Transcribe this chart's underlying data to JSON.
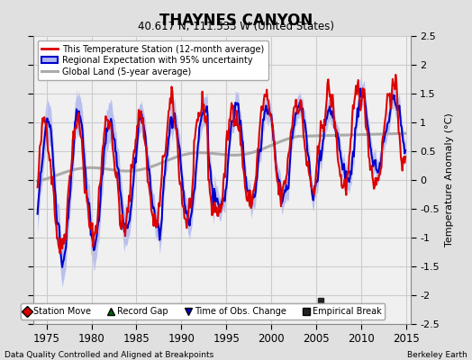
{
  "title": "THAYNES CANYON",
  "subtitle": "40.617 N, 111.533 W (United States)",
  "ylabel": "Temperature Anomaly (°C)",
  "xlabel_left": "Data Quality Controlled and Aligned at Breakpoints",
  "xlabel_right": "Berkeley Earth",
  "ylim": [
    -2.5,
    2.5
  ],
  "xlim": [
    1973.5,
    2015.5
  ],
  "xticks": [
    1975,
    1980,
    1985,
    1990,
    1995,
    2000,
    2005,
    2010,
    2015
  ],
  "yticks": [
    -2.5,
    -2,
    -1.5,
    -1,
    -0.5,
    0,
    0.5,
    1,
    1.5,
    2,
    2.5
  ],
  "bg_color": "#e0e0e0",
  "plot_bg_color": "#f0f0f0",
  "grid_color": "#cccccc",
  "station_color": "#dd0000",
  "regional_color": "#0000cc",
  "regional_fill_color": "#b0b8ee",
  "global_color": "#aaaaaa",
  "empirical_break_x": 2005.5,
  "empirical_break_y": -2.1,
  "legend1_entries": [
    {
      "label": "This Temperature Station (12-month average)",
      "color": "#dd0000"
    },
    {
      "label": "Regional Expectation with 95% uncertainty",
      "color": "#0000cc",
      "fill": "#b0b8ee"
    },
    {
      "label": "Global Land (5-year average)",
      "color": "#aaaaaa"
    }
  ],
  "legend2_entries": [
    {
      "label": "Station Move",
      "color": "#dd0000",
      "marker": "D"
    },
    {
      "label": "Record Gap",
      "color": "#006600",
      "marker": "^"
    },
    {
      "label": "Time of Obs. Change",
      "color": "#0000cc",
      "marker": "v"
    },
    {
      "label": "Empirical Break",
      "color": "#222222",
      "marker": "s"
    }
  ]
}
